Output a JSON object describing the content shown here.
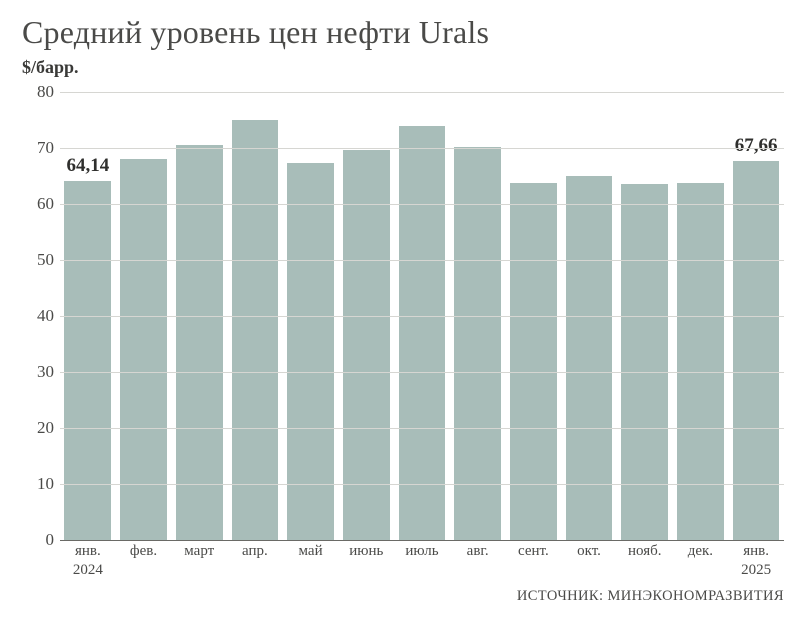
{
  "chart": {
    "type": "bar",
    "title": "Средний уровень цен нефти Urals",
    "subtitle": "$/барр.",
    "source": "ИСТОЧНИК: МИНЭКОНОМРАЗВИТИЯ",
    "background_color": "#ffffff",
    "bar_color": "#a8bdb9",
    "grid_color": "#d6d6d2",
    "axis_color": "#6a6a66",
    "text_color": "#4a4a48",
    "label_bold_color": "#2f2f2d",
    "title_fontsize": 32,
    "subtitle_fontsize": 18,
    "tick_fontsize": 17,
    "xlabel_fontsize": 15,
    "value_label_fontsize": 19,
    "ylim": [
      0,
      80
    ],
    "ytick_step": 10,
    "yticks": [
      0,
      10,
      20,
      30,
      40,
      50,
      60,
      70,
      80
    ],
    "bar_width": 0.84,
    "categories": [
      "янв.\n2024",
      "фев.",
      "март",
      "апр.",
      "май",
      "июнь",
      "июль",
      "авг.",
      "сент.",
      "окт.",
      "нояб.",
      "дек.",
      "янв.\n2025"
    ],
    "values": [
      64.14,
      68.0,
      70.5,
      75.0,
      67.3,
      69.6,
      74.0,
      70.2,
      63.8,
      65.0,
      63.6,
      63.7,
      67.66
    ],
    "annotations": [
      {
        "index": 0,
        "text": "64,14"
      },
      {
        "index": 12,
        "text": "67,66"
      }
    ]
  }
}
